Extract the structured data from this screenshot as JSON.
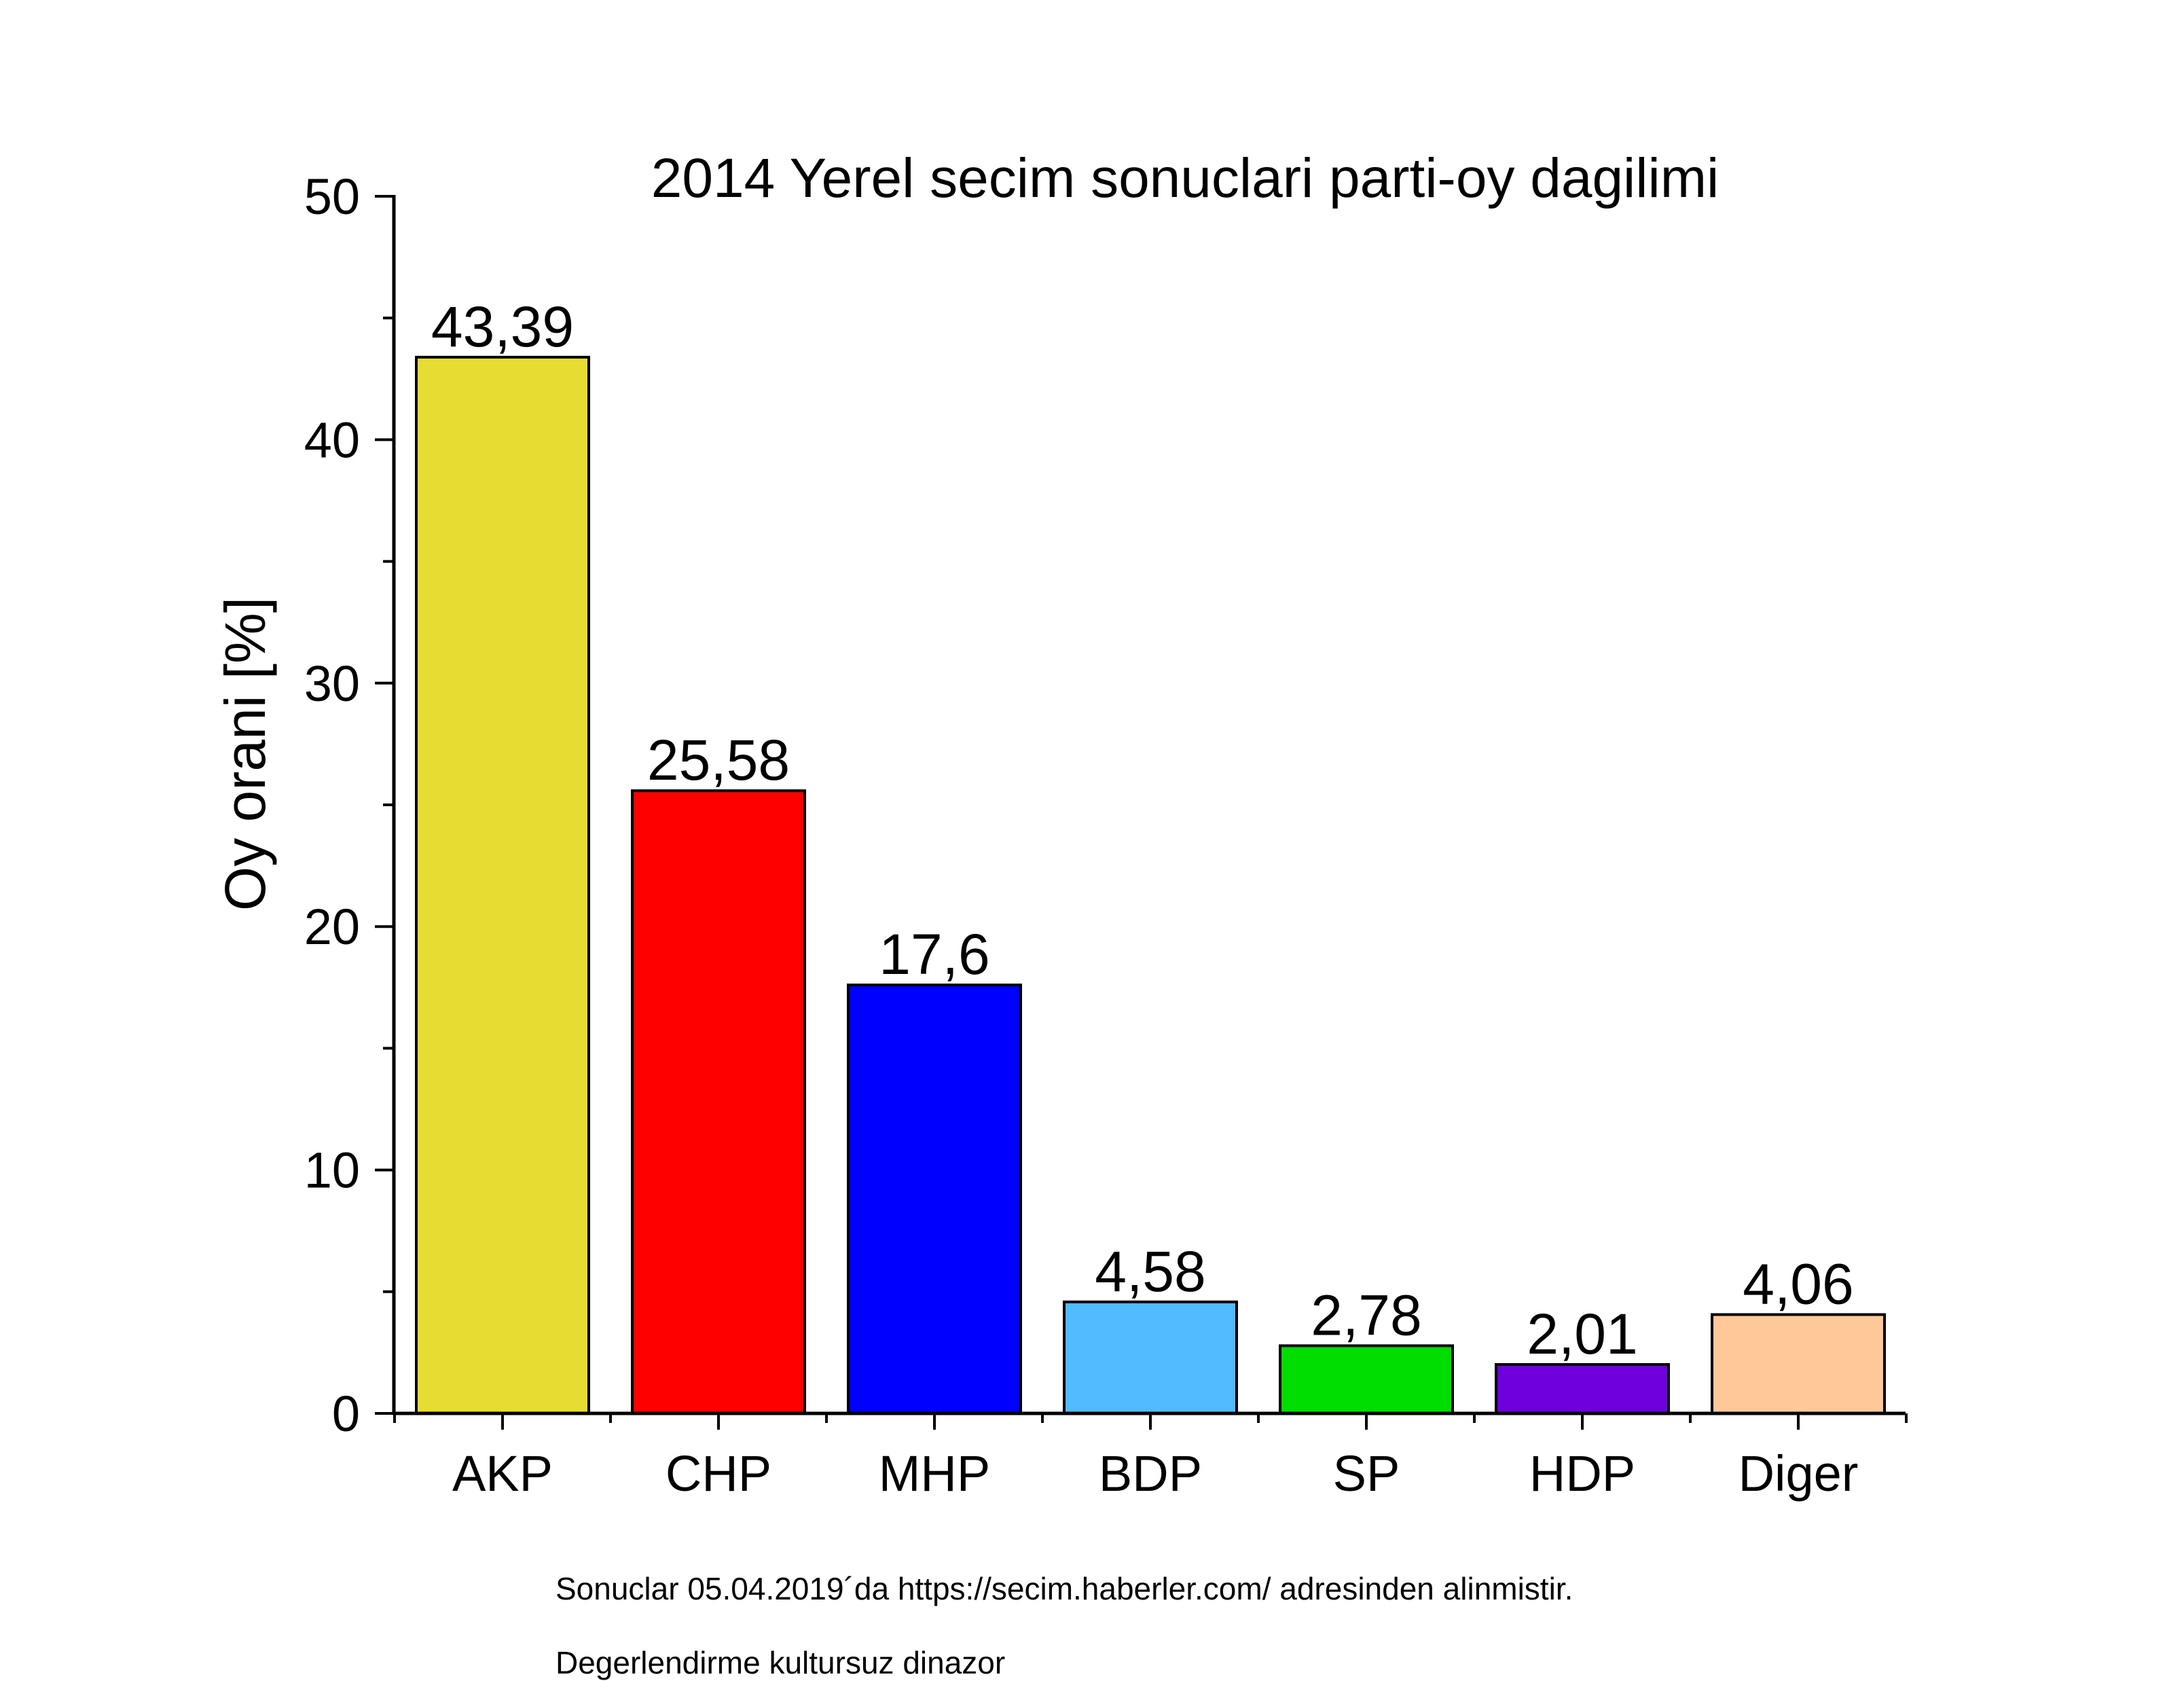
{
  "chart_data": {
    "type": "bar",
    "title": "2014 Yerel secim sonuclari parti-oy dagilimi",
    "xlabel": "",
    "ylabel": "Oy orani [%]",
    "ylim": [
      0,
      50
    ],
    "yticks": [
      0,
      10,
      20,
      30,
      40,
      50
    ],
    "grid": false,
    "legend": "none",
    "categories": [
      "AKP",
      "CHP",
      "MHP",
      "BDP",
      "SP",
      "HDP",
      "Diger"
    ],
    "values": [
      43.39,
      25.58,
      17.6,
      4.58,
      2.78,
      2.01,
      4.06
    ],
    "value_labels": [
      "43,39",
      "25,58",
      "17,6",
      "4,58",
      "2,78",
      "2,01",
      "4,06"
    ],
    "colors": [
      "#E6DC32",
      "#FF0000",
      "#0000FF",
      "#50BBFF",
      "#00DD00",
      "#6F00DD",
      "#FFC898"
    ]
  },
  "notes": {
    "source": "Sonuclar 05.04.2019´da https://secim.haberler.com/ adresinden alinmistir.",
    "evaluation": "Degerlendirme kultursuz dinazor"
  }
}
